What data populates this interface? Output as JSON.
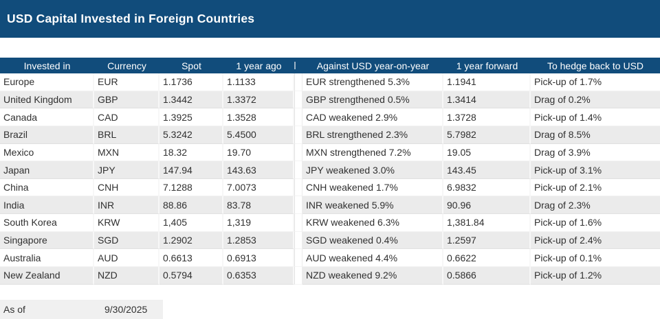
{
  "colors": {
    "navy": "#114C7B",
    "stripe": "#EBEBEB",
    "text": "#303030",
    "footer_bg": "#F0F0F0"
  },
  "chart_data": {
    "type": "table",
    "title": "USD Capital Invested in Foreign Countries",
    "columns": [
      "Invested in",
      "Currency",
      "Spot",
      "1 year ago",
      "Against USD year-on-year",
      "1 year forward",
      "To hedge back to USD"
    ],
    "rows": [
      [
        "Europe",
        "EUR",
        "1.1736",
        "1.1133",
        "EUR strengthened 5.3%",
        "1.1941",
        "Pick-up of 1.7%"
      ],
      [
        "United Kingdom",
        "GBP",
        "1.3442",
        "1.3372",
        "GBP strengthened 0.5%",
        "1.3414",
        "Drag of 0.2%"
      ],
      [
        "Canada",
        "CAD",
        "1.3925",
        "1.3528",
        "CAD weakened 2.9%",
        "1.3728",
        "Pick-up of 1.4%"
      ],
      [
        "Brazil",
        "BRL",
        "5.3242",
        "5.4500",
        "BRL strengthened 2.3%",
        "5.7982",
        "Drag of 8.5%"
      ],
      [
        "Mexico",
        "MXN",
        "18.32",
        "19.70",
        "MXN strengthened 7.2%",
        "19.05",
        "Drag of 3.9%"
      ],
      [
        "Japan",
        "JPY",
        "147.94",
        "143.63",
        "JPY weakened 3.0%",
        "143.45",
        "Pick-up of 3.1%"
      ],
      [
        "China",
        "CNH",
        "7.1288",
        "7.0073",
        "CNH weakened 1.7%",
        "6.9832",
        "Pick-up of 2.1%"
      ],
      [
        "India",
        "INR",
        "88.86",
        "83.78",
        "INR weakened 5.9%",
        "90.96",
        "Drag of 2.3%"
      ],
      [
        "South Korea",
        "KRW",
        "1,405",
        "1,319",
        "KRW weakened 6.3%",
        "1,381.84",
        "Pick-up of 1.6%"
      ],
      [
        "Singapore",
        "SGD",
        "1.2902",
        "1.2853",
        "SGD weakened 0.4%",
        "1.2597",
        "Pick-up of 2.4%"
      ],
      [
        "Australia",
        "AUD",
        "0.6613",
        "0.6913",
        "AUD weakened 4.4%",
        "0.6622",
        "Pick-up of 0.1%"
      ],
      [
        "New Zealand",
        "NZD",
        "0.5794",
        "0.6353",
        "NZD weakened 9.2%",
        "0.5866",
        "Pick-up of 1.2%"
      ]
    ],
    "footer": {
      "label": "As of",
      "date": "9/30/2025"
    }
  }
}
